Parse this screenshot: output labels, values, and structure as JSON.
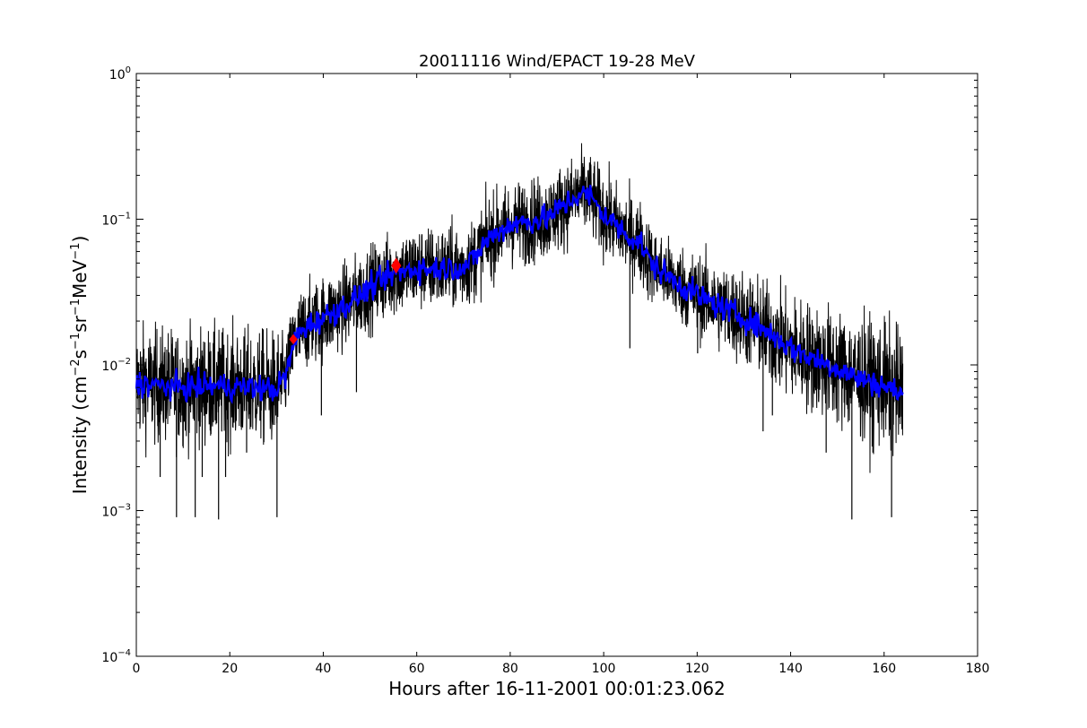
{
  "chart_data": {
    "type": "line",
    "title": "20011116 Wind/EPACT 19-28 MeV",
    "xlabel": "Hours after 16-11-2001 00:01:23.062",
    "ylabel": {
      "prefix": "Intensity (cm",
      "exp1": "−2",
      "unit2": "s",
      "exp2": "−1",
      "unit3": "sr",
      "exp3": "−1",
      "unit4": "MeV",
      "exp4": "−1",
      "suffix": ")"
    },
    "xlim": [
      0,
      180
    ],
    "ylim": [
      0.0001,
      1
    ],
    "yscale": "log",
    "grid": false,
    "x_ticks": [
      0,
      20,
      40,
      60,
      80,
      100,
      120,
      140,
      160,
      180
    ],
    "y_ticks": [
      {
        "value": 0.0001,
        "base": "10",
        "exp": "−4"
      },
      {
        "value": 0.001,
        "base": "10",
        "exp": "−3"
      },
      {
        "value": 0.01,
        "base": "10",
        "exp": "−2"
      },
      {
        "value": 0.1,
        "base": "10",
        "exp": "−1"
      },
      {
        "value": 1,
        "base": "10",
        "exp": "0"
      }
    ],
    "series": [
      {
        "role": "raw",
        "color": "#000000",
        "x_range": [
          0,
          164
        ],
        "envelope": [
          [
            0,
            0.0075
          ],
          [
            5,
            0.0072
          ],
          [
            10,
            0.007
          ],
          [
            15,
            0.0072
          ],
          [
            20,
            0.0071
          ],
          [
            25,
            0.007
          ],
          [
            30,
            0.0068
          ],
          [
            32,
            0.0085
          ],
          [
            34,
            0.015
          ],
          [
            36,
            0.018
          ],
          [
            40,
            0.021
          ],
          [
            45,
            0.026
          ],
          [
            50,
            0.034
          ],
          [
            55,
            0.042
          ],
          [
            60,
            0.046
          ],
          [
            65,
            0.046
          ],
          [
            70,
            0.047
          ],
          [
            72,
            0.052
          ],
          [
            75,
            0.072
          ],
          [
            80,
            0.092
          ],
          [
            85,
            0.098
          ],
          [
            88,
            0.102
          ],
          [
            90,
            0.115
          ],
          [
            93,
            0.135
          ],
          [
            95,
            0.15
          ],
          [
            97,
            0.145
          ],
          [
            100,
            0.108
          ],
          [
            105,
            0.078
          ],
          [
            108,
            0.068
          ],
          [
            110,
            0.05
          ],
          [
            115,
            0.038
          ],
          [
            120,
            0.03
          ],
          [
            125,
            0.025
          ],
          [
            130,
            0.021
          ],
          [
            135,
            0.017
          ],
          [
            140,
            0.013
          ],
          [
            145,
            0.011
          ],
          [
            150,
            0.0095
          ],
          [
            155,
            0.008
          ],
          [
            160,
            0.0072
          ],
          [
            164,
            0.0062
          ]
        ],
        "dips": [
          [
            8.6,
            0.0009
          ],
          [
            12.6,
            0.0009
          ],
          [
            17.6,
            0.00087
          ],
          [
            30.1,
            0.0009
          ],
          [
            153.1,
            0.00087
          ],
          [
            161.6,
            0.0009
          ],
          [
            5.1,
            0.0017
          ],
          [
            14.1,
            0.0017
          ],
          [
            19.1,
            0.0017
          ],
          [
            23.6,
            0.0025
          ],
          [
            39.6,
            0.0045
          ],
          [
            47.1,
            0.0065
          ],
          [
            134.1,
            0.0035
          ],
          [
            136.1,
            0.0045
          ],
          [
            147.6,
            0.0025
          ],
          [
            157.6,
            0.0025
          ],
          [
            120.1,
            0.012
          ],
          [
            105.6,
            0.013
          ]
        ]
      },
      {
        "role": "smoothed",
        "color": "#0000ff",
        "x_range": [
          0,
          164
        ]
      }
    ],
    "markers": [
      {
        "x": 33.6,
        "y": 0.015,
        "color": "#ff0000",
        "shape": "diamond-small"
      },
      {
        "x": 55.6,
        "y": 0.048,
        "color": "#ff0000",
        "shape": "diamond"
      }
    ]
  }
}
